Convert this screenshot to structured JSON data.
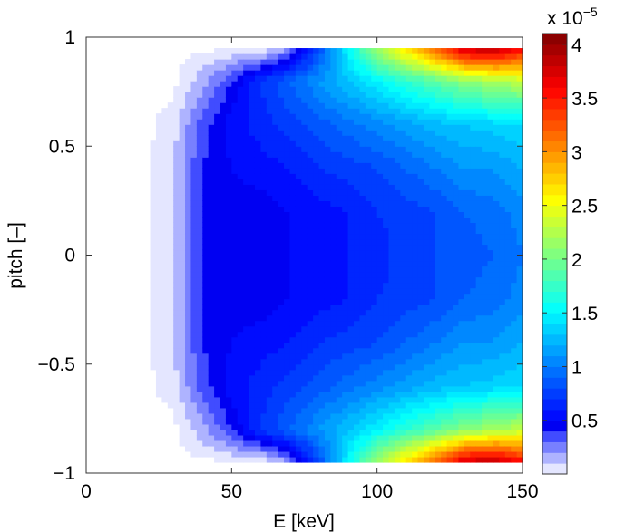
{
  "chart_data": {
    "type": "contour",
    "title": "",
    "xlabel": "E [keV]",
    "ylabel": "pitch [–]",
    "xlim": [
      0,
      150
    ],
    "ylim": [
      -1,
      1
    ],
    "xticks": [
      "0",
      "50",
      "100",
      "150"
    ],
    "xtick_values": [
      0,
      50,
      100,
      150
    ],
    "yticks": [
      "1",
      "0.5",
      "0",
      "−0.5",
      "−1"
    ],
    "ytick_values": [
      1,
      0.5,
      0,
      -0.5,
      -1
    ],
    "grid": false,
    "colormap": "jet",
    "colorbar": {
      "exponent_label": "x 10",
      "exponent": "−5",
      "ticks": [
        "0.5",
        "1",
        "1.5",
        "2",
        "2.5",
        "3",
        "3.5",
        "4"
      ],
      "tick_values": [
        0.5,
        1,
        1.5,
        2,
        2.5,
        3,
        3.5,
        4
      ],
      "clim": [
        0,
        4.1
      ]
    },
    "E": [
      0,
      10,
      20,
      30,
      40,
      50,
      60,
      70,
      80,
      90,
      100,
      110,
      120,
      130,
      140,
      150
    ],
    "pitch": [
      -0.95,
      -0.8,
      -0.6,
      -0.4,
      -0.2,
      0,
      0.2,
      0.4,
      0.6,
      0.8,
      0.95
    ],
    "values_approx_e-5": [
      [
        0,
        0,
        0,
        0,
        0,
        0,
        0,
        0.2,
        0.8,
        1.5,
        2.2,
        2.7,
        3.2,
        3.8,
        3.9,
        3.6
      ],
      [
        0,
        0,
        0,
        0,
        0.15,
        0.4,
        0.7,
        0.9,
        1.1,
        1.3,
        1.5,
        1.7,
        1.9,
        2.1,
        2.2,
        2.3
      ],
      [
        0,
        0,
        0,
        0.05,
        0.35,
        0.55,
        0.65,
        0.75,
        0.85,
        0.95,
        1.05,
        1.15,
        1.25,
        1.3,
        1.35,
        1.4
      ],
      [
        0,
        0,
        0,
        0.1,
        0.4,
        0.5,
        0.55,
        0.6,
        0.7,
        0.75,
        0.8,
        0.9,
        1.0,
        1.1,
        1.1,
        1.2
      ],
      [
        0,
        0,
        0,
        0.1,
        0.4,
        0.45,
        0.45,
        0.5,
        0.55,
        0.6,
        0.7,
        0.75,
        0.8,
        0.9,
        0.95,
        1.05
      ],
      [
        0,
        0,
        0,
        0.1,
        0.4,
        0.45,
        0.45,
        0.5,
        0.5,
        0.6,
        0.65,
        0.75,
        0.8,
        0.85,
        0.9,
        1.0
      ],
      [
        0,
        0,
        0,
        0.1,
        0.4,
        0.45,
        0.45,
        0.5,
        0.55,
        0.6,
        0.7,
        0.75,
        0.8,
        0.9,
        0.95,
        1.05
      ],
      [
        0,
        0,
        0,
        0.1,
        0.4,
        0.5,
        0.55,
        0.6,
        0.7,
        0.75,
        0.8,
        0.9,
        1.0,
        1.1,
        1.1,
        1.2
      ],
      [
        0,
        0,
        0,
        0.05,
        0.35,
        0.55,
        0.65,
        0.75,
        0.85,
        0.95,
        1.05,
        1.15,
        1.25,
        1.3,
        1.35,
        1.4
      ],
      [
        0,
        0,
        0,
        0,
        0.15,
        0.4,
        0.7,
        0.9,
        1.1,
        1.3,
        1.5,
        1.7,
        1.9,
        2.1,
        2.2,
        2.3
      ],
      [
        0,
        0,
        0,
        0,
        0,
        0,
        0,
        0.2,
        0.8,
        1.5,
        2.2,
        2.7,
        3.2,
        3.8,
        3.9,
        3.6
      ]
    ]
  }
}
